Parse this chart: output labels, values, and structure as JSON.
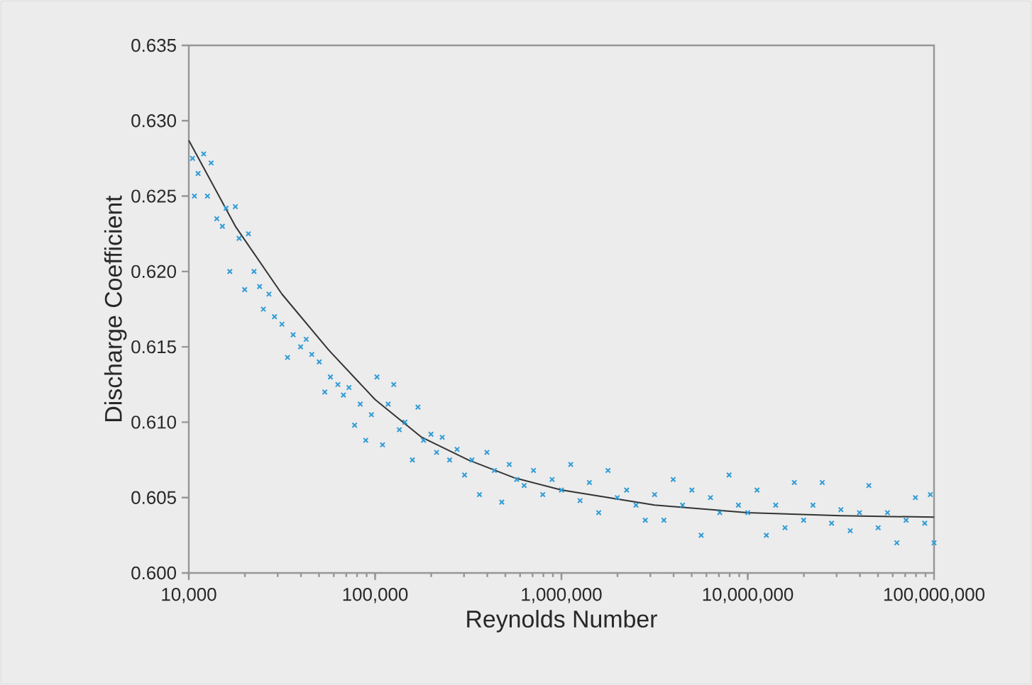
{
  "chart_data": {
    "type": "scatter",
    "xlabel": "Reynolds Number",
    "ylabel": "Discharge Coefficient",
    "log": "x",
    "xlim": [
      10000,
      100000000
    ],
    "ylim": [
      0.6,
      0.635
    ],
    "xticks": [
      {
        "value": 10000,
        "label": "10,000"
      },
      {
        "value": 100000,
        "label": "100,000"
      },
      {
        "value": 1000000,
        "label": "1,000,000"
      },
      {
        "value": 10000000,
        "label": "10,000,000"
      },
      {
        "value": 100000000,
        "label": "100,000,000"
      }
    ],
    "yticks": [
      {
        "value": 0.6,
        "label": "0.600"
      },
      {
        "value": 0.605,
        "label": "0.605"
      },
      {
        "value": 0.61,
        "label": "0.610"
      },
      {
        "value": 0.615,
        "label": "0.615"
      },
      {
        "value": 0.62,
        "label": "0.620"
      },
      {
        "value": 0.625,
        "label": "0.625"
      },
      {
        "value": 0.63,
        "label": "0.630"
      },
      {
        "value": 0.635,
        "label": "0.635"
      }
    ],
    "series": [
      {
        "color": "#2e9bd6",
        "marker": "cross",
        "x": [
          10470,
          10720,
          11220,
          12020,
          12590,
          13180,
          14130,
          15140,
          15850,
          16600,
          17780,
          18620,
          19950,
          20890,
          22390,
          23990,
          25120,
          26920,
          28840,
          31620,
          33880,
          36310,
          39810,
          42660,
          45710,
          50120,
          53700,
          57540,
          63100,
          67600,
          72400,
          77600,
          83200,
          89100,
          95500,
          102300,
          109600,
          117500,
          125900,
          134900,
          144500,
          158500,
          169800,
          182000,
          199500,
          213800,
          229100,
          251200,
          275400,
          302000,
          331100,
          363100,
          398100,
          436500,
          478600,
          524800,
          575400,
          631000,
          708000,
          794000,
          891000,
          1000000,
          1122000,
          1259000,
          1413000,
          1585000,
          1778000,
          1995000,
          2239000,
          2512000,
          2818000,
          3162000,
          3548000,
          3981000,
          4467000,
          5012000,
          5623000,
          6310000,
          7079000,
          7943000,
          8913000,
          10000000,
          11220000,
          12590000,
          14130000,
          15850000,
          17780000,
          19950000,
          22390000,
          25120000,
          28180000,
          31620000,
          35480000,
          39810000,
          44670000,
          50120000,
          56230000,
          63100000,
          70790000,
          79430000,
          89130000,
          95500000,
          100000000
        ],
        "values": [
          0.6275,
          0.625,
          0.6265,
          0.6278,
          0.625,
          0.6272,
          0.6235,
          0.623,
          0.6242,
          0.62,
          0.6243,
          0.6222,
          0.6188,
          0.6225,
          0.62,
          0.619,
          0.6175,
          0.6185,
          0.617,
          0.6165,
          0.6143,
          0.6158,
          0.615,
          0.6155,
          0.6145,
          0.614,
          0.612,
          0.613,
          0.6125,
          0.6118,
          0.6123,
          0.6098,
          0.6112,
          0.6088,
          0.6105,
          0.613,
          0.6085,
          0.6112,
          0.6125,
          0.6095,
          0.61,
          0.6075,
          0.611,
          0.6088,
          0.6092,
          0.608,
          0.609,
          0.6075,
          0.6082,
          0.6065,
          0.6075,
          0.6052,
          0.608,
          0.6068,
          0.6047,
          0.6072,
          0.6062,
          0.6058,
          0.6068,
          0.6052,
          0.6062,
          0.6055,
          0.6072,
          0.6048,
          0.606,
          0.604,
          0.6068,
          0.605,
          0.6055,
          0.6045,
          0.6035,
          0.6052,
          0.6035,
          0.6062,
          0.6045,
          0.6055,
          0.6025,
          0.605,
          0.604,
          0.6065,
          0.6045,
          0.604,
          0.6055,
          0.6025,
          0.6045,
          0.603,
          0.606,
          0.6035,
          0.6045,
          0.606,
          0.6033,
          0.6042,
          0.6028,
          0.604,
          0.6058,
          0.603,
          0.604,
          0.602,
          0.6035,
          0.605,
          0.6033,
          0.6052,
          0.602
        ]
      },
      {
        "type": "line",
        "color": "#333333",
        "marker": "none",
        "x": [
          10000,
          17780,
          31620,
          56230,
          100000,
          177800,
          316200,
          562300,
          1000000,
          3162000,
          10000000,
          31620000,
          100000000
        ],
        "values": [
          0.6287,
          0.623,
          0.6185,
          0.6148,
          0.6115,
          0.609,
          0.6075,
          0.6063,
          0.6055,
          0.6045,
          0.604,
          0.6038,
          0.6037
        ]
      }
    ]
  }
}
